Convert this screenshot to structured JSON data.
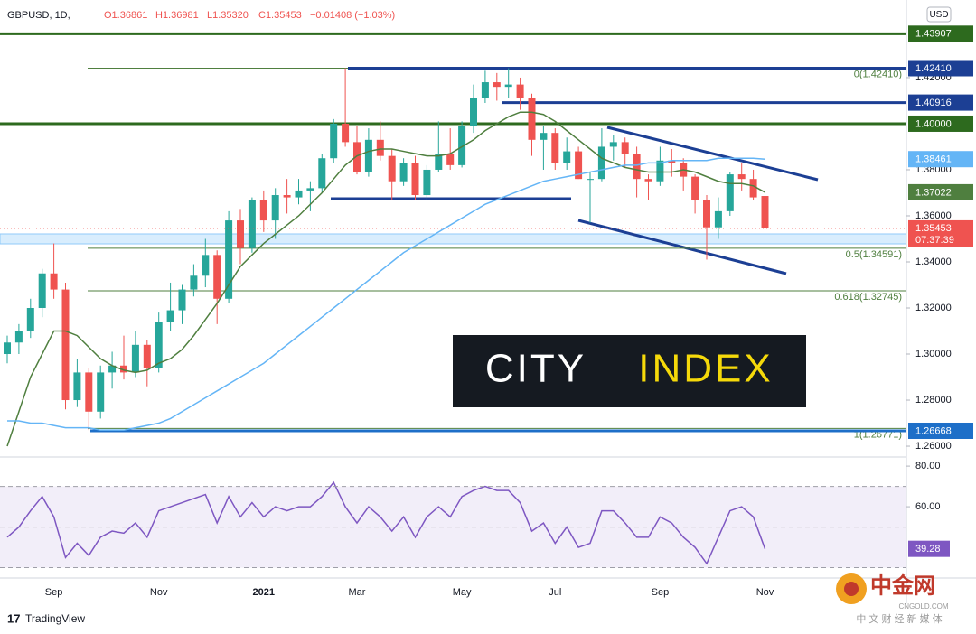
{
  "chart_data": {
    "type": "candlestick",
    "header": {
      "symbol": "GBPUSD, 1D,",
      "open": "O1.36861",
      "high": "H1.36981",
      "low": "L1.35320",
      "close": "C1.35453",
      "change": "−0.01408 (−1.03%)"
    },
    "currency": "USD",
    "categories": [
      null,
      null,
      null,
      null,
      "Sep",
      null,
      null,
      null,
      null,
      null,
      null,
      null,
      null,
      "Nov",
      null,
      null,
      null,
      null,
      null,
      null,
      null,
      null,
      "2021",
      null,
      null,
      null,
      null,
      null,
      null,
      null,
      "Mar",
      null,
      null,
      null,
      null,
      null,
      null,
      null,
      null,
      "May",
      null,
      null,
      null,
      null,
      null,
      null,
      null,
      "Jul",
      null,
      null,
      null,
      null,
      null,
      null,
      null,
      null,
      "Sep",
      null,
      null,
      null,
      null,
      null,
      null,
      null,
      null,
      "Nov"
    ],
    "series": [
      {
        "name": "GBPUSD",
        "up_color": "#26a69a",
        "down_color": "#ef5350",
        "open": [
          1.3,
          1.305,
          1.31,
          1.32,
          1.335,
          1.328,
          1.28,
          1.292,
          1.275,
          1.292,
          1.295,
          1.292,
          1.304,
          1.294,
          1.314,
          1.319,
          1.328,
          1.334,
          1.343,
          1.324,
          1.358,
          1.346,
          1.367,
          1.358,
          1.369,
          1.368,
          1.371,
          1.372,
          1.385,
          1.4,
          1.392,
          1.379,
          1.393,
          1.386,
          1.375,
          1.383,
          1.369,
          1.38,
          1.387,
          1.382,
          1.399,
          1.411,
          1.418,
          1.416,
          1.417,
          1.411,
          1.393,
          1.396,
          1.383,
          1.388,
          1.376,
          1.376,
          1.39,
          1.392,
          1.387,
          1.376,
          1.375,
          1.384,
          1.383,
          1.377,
          1.367,
          1.355,
          1.362,
          1.378,
          1.376,
          1.36861
        ],
        "high": [
          1.308,
          1.313,
          1.324,
          1.337,
          1.348,
          1.331,
          1.298,
          1.294,
          1.295,
          1.301,
          1.308,
          1.31,
          1.306,
          1.318,
          1.331,
          1.33,
          1.339,
          1.35,
          1.345,
          1.362,
          1.363,
          1.368,
          1.371,
          1.372,
          1.376,
          1.376,
          1.375,
          1.387,
          1.402,
          1.4241,
          1.399,
          1.398,
          1.401,
          1.389,
          1.385,
          1.386,
          1.382,
          1.401,
          1.398,
          1.401,
          1.417,
          1.423,
          1.422,
          1.4241,
          1.42,
          1.413,
          1.399,
          1.398,
          1.394,
          1.39,
          1.379,
          1.398,
          1.395,
          1.394,
          1.39,
          1.378,
          1.39,
          1.389,
          1.385,
          1.378,
          1.369,
          1.368,
          1.379,
          1.383,
          1.38,
          1.36981
        ],
        "low": [
          1.296,
          1.3,
          1.307,
          1.316,
          1.324,
          1.276,
          1.277,
          1.267,
          1.272,
          1.285,
          1.289,
          1.29,
          1.286,
          1.292,
          1.31,
          1.313,
          1.325,
          1.329,
          1.313,
          1.322,
          1.339,
          1.344,
          1.353,
          1.35,
          1.361,
          1.365,
          1.362,
          1.37,
          1.383,
          1.39,
          1.378,
          1.377,
          1.384,
          1.367,
          1.373,
          1.367,
          1.367,
          1.379,
          1.38,
          1.381,
          1.396,
          1.409,
          1.41,
          1.411,
          1.406,
          1.386,
          1.38,
          1.38,
          1.38,
          1.376,
          1.357,
          1.375,
          1.384,
          1.381,
          1.368,
          1.367,
          1.373,
          1.377,
          1.371,
          1.361,
          1.341,
          1.35,
          1.36,
          1.371,
          1.367,
          1.3532
        ],
        "close": [
          1.305,
          1.31,
          1.32,
          1.335,
          1.328,
          1.28,
          1.292,
          1.275,
          1.292,
          1.295,
          1.292,
          1.304,
          1.294,
          1.314,
          1.319,
          1.328,
          1.334,
          1.343,
          1.324,
          1.358,
          1.346,
          1.367,
          1.358,
          1.369,
          1.368,
          1.371,
          1.372,
          1.385,
          1.4,
          1.392,
          1.379,
          1.393,
          1.386,
          1.375,
          1.383,
          1.369,
          1.38,
          1.387,
          1.382,
          1.399,
          1.411,
          1.418,
          1.416,
          1.417,
          1.411,
          1.393,
          1.396,
          1.383,
          1.388,
          1.376,
          1.376,
          1.39,
          1.392,
          1.387,
          1.376,
          1.375,
          1.384,
          1.383,
          1.377,
          1.367,
          1.355,
          1.362,
          1.378,
          1.376,
          1.368,
          1.35453
        ]
      },
      {
        "name": "MA 50",
        "type": "line",
        "color": "#4f7f3f",
        "values": [
          1.26,
          1.275,
          1.29,
          1.3,
          1.31,
          1.31,
          1.308,
          1.303,
          1.298,
          1.295,
          1.293,
          1.292,
          1.293,
          1.296,
          1.298,
          1.302,
          1.308,
          1.315,
          1.322,
          1.33,
          1.338,
          1.343,
          1.348,
          1.352,
          1.356,
          1.36,
          1.365,
          1.37,
          1.376,
          1.382,
          1.386,
          1.388,
          1.389,
          1.389,
          1.388,
          1.387,
          1.386,
          1.386,
          1.387,
          1.39,
          1.393,
          1.397,
          1.4,
          1.403,
          1.405,
          1.405,
          1.404,
          1.401,
          1.397,
          1.393,
          1.389,
          1.385,
          1.383,
          1.381,
          1.38,
          1.379,
          1.379,
          1.379,
          1.38,
          1.379,
          1.377,
          1.375,
          1.374,
          1.374,
          1.373,
          1.37022
        ]
      },
      {
        "name": "MA 200",
        "type": "line",
        "color": "#64b5f6",
        "values": [
          1.271,
          1.271,
          1.27,
          1.27,
          1.269,
          1.268,
          1.268,
          1.268,
          1.267,
          1.267,
          1.267,
          1.268,
          1.269,
          1.27,
          1.272,
          1.275,
          1.278,
          1.281,
          1.284,
          1.287,
          1.29,
          1.293,
          1.296,
          1.3,
          1.304,
          1.308,
          1.312,
          1.316,
          1.32,
          1.324,
          1.328,
          1.332,
          1.336,
          1.34,
          1.344,
          1.347,
          1.35,
          1.353,
          1.356,
          1.359,
          1.362,
          1.365,
          1.367,
          1.369,
          1.371,
          1.373,
          1.375,
          1.376,
          1.377,
          1.378,
          1.379,
          1.38,
          1.381,
          1.382,
          1.382,
          1.383,
          1.383,
          1.384,
          1.384,
          1.384,
          1.384,
          1.385,
          1.385,
          1.385,
          1.385,
          1.38461
        ]
      }
    ],
    "countdown": "07:37:39",
    "ylim": [
      1.2557,
      1.4537
    ],
    "yticks": [
      {
        "value": 1.26,
        "label": "1.26000"
      },
      {
        "value": 1.28,
        "label": "1.28000"
      },
      {
        "value": 1.3,
        "label": "1.30000"
      },
      {
        "value": 1.32,
        "label": "1.32000"
      },
      {
        "value": 1.34,
        "label": "1.34000"
      },
      {
        "value": 1.36,
        "label": "1.36000"
      },
      {
        "value": 1.38,
        "label": "1.38000"
      },
      {
        "value": 1.42,
        "label": "1.42000"
      }
    ],
    "levels": [
      {
        "price": 1.43907,
        "color": "#2d6a1e"
      },
      {
        "price": 1.4241,
        "label": "1.42410",
        "color": "#1c3f94"
      },
      {
        "price": 1.40916,
        "color": "#1c3f94"
      },
      {
        "price": 1.4,
        "label": "1.40000",
        "color": "#2d6a1e"
      },
      {
        "price": 1.26668,
        "color": "#1e6fc8"
      }
    ],
    "fib": [
      {
        "value": 1.4241,
        "label": "0(1.42410)"
      },
      {
        "value": 1.34591,
        "label": "0.5(1.34591)"
      },
      {
        "value": 1.32745,
        "label": "0.618(1.32745)"
      },
      {
        "value": 1.26771,
        "label": "1(1.26771)"
      }
    ],
    "watermark": [
      "CITY",
      "INDEX"
    ],
    "rsi": {
      "color": "#7e57c2",
      "values": [
        45,
        50,
        58,
        65,
        55,
        35,
        42,
        36,
        45,
        48,
        47,
        52,
        45,
        58,
        60,
        62,
        64,
        66,
        52,
        65,
        55,
        62,
        55,
        60,
        58,
        60,
        60,
        65,
        72,
        60,
        52,
        60,
        55,
        48,
        55,
        45,
        55,
        60,
        55,
        65,
        68,
        70,
        68,
        68,
        62,
        48,
        52,
        42,
        50,
        40,
        42,
        58,
        58,
        52,
        45,
        45,
        55,
        52,
        45,
        40,
        32,
        45,
        58,
        60,
        55,
        39.28
      ],
      "ylim": [
        25.8,
        83.6
      ],
      "yticks": [
        {
          "value": 80,
          "label": "80.00"
        },
        {
          "value": 60,
          "label": "60.00"
        }
      ],
      "bands": [
        70,
        50,
        30
      ]
    },
    "footer": "TradingView",
    "logo": {
      "title": "中金网",
      "site": "CNGOLD.COM",
      "tagline": "中 文 财 经 新 媒 体"
    }
  }
}
